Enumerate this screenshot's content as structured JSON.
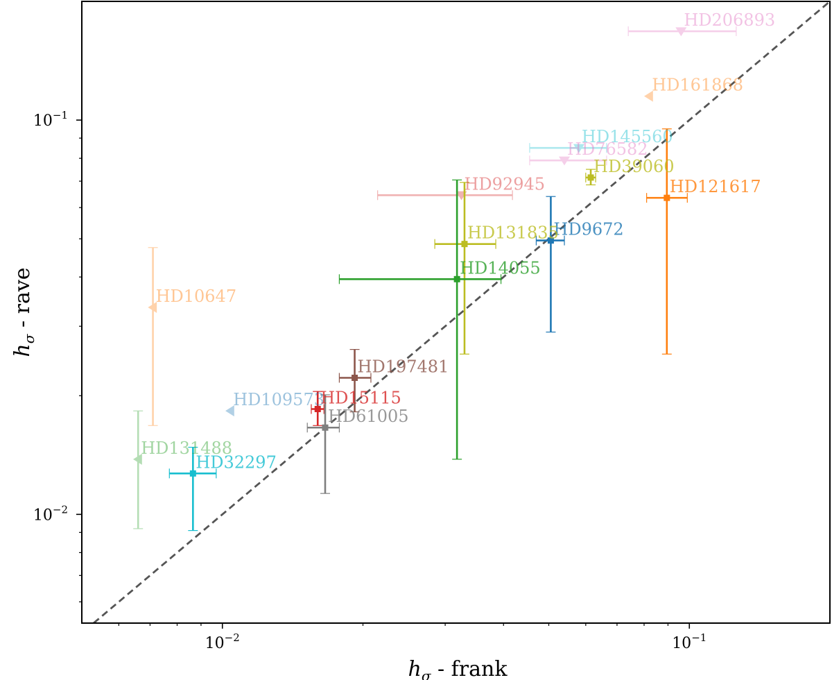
{
  "chart_data": {
    "type": "scatter",
    "title": "",
    "xlabel": "h_σ - frank",
    "ylabel": "h_σ - rave",
    "xlabel_main": "h",
    "xlabel_sub": "σ",
    "xlabel_rest": " - frank",
    "ylabel_main": "h",
    "ylabel_sub": "σ",
    "ylabel_rest": " - rave",
    "xscale": "log",
    "yscale": "log",
    "xlim": [
      0.005,
      0.2
    ],
    "ylim": [
      0.0053,
      0.2
    ],
    "x_ticks": [
      {
        "base": "10",
        "exp": "−2",
        "value": 0.01
      },
      {
        "base": "10",
        "exp": "−1",
        "value": 0.1
      }
    ],
    "y_ticks": [
      {
        "base": "10",
        "exp": "−2",
        "value": 0.01
      },
      {
        "base": "10",
        "exp": "−1",
        "value": 0.1
      }
    ],
    "reference_line": "y = x (dashed)",
    "points": [
      {
        "name": "HD206893",
        "x": 0.096,
        "y": 0.168,
        "xerr": [
          0.074,
          0.126
        ],
        "yerr": null,
        "color": "#e377c2",
        "marker": "v",
        "alpha": 0.35
      },
      {
        "name": "HD161868",
        "x": 0.082,
        "y": 0.115,
        "xerr": null,
        "yerr": null,
        "color": "#ff7f0e",
        "marker": "<",
        "alpha": 0.35
      },
      {
        "name": "HD145560",
        "x": 0.058,
        "y": 0.085,
        "xerr": [
          0.0455,
          0.0665
        ],
        "yerr": null,
        "color": "#17becf",
        "marker": "v",
        "alpha": 0.35
      },
      {
        "name": "HD76582",
        "x": 0.054,
        "y": 0.079,
        "xerr": [
          0.0455,
          0.0665
        ],
        "yerr": null,
        "color": "#e377c2",
        "marker": "v",
        "alpha": 0.35
      },
      {
        "name": "HD39060",
        "x": 0.0615,
        "y": 0.0715,
        "xerr": [
          0.06,
          0.063
        ],
        "yerr": [
          0.0685,
          0.075
        ],
        "color": "#bcbd22",
        "marker": "s",
        "alpha": 1.0
      },
      {
        "name": "HD121617",
        "x": 0.0895,
        "y": 0.0635,
        "xerr": [
          0.081,
          0.099
        ],
        "yerr": [
          0.0255,
          0.095
        ],
        "color": "#ff7f0e",
        "marker": "s",
        "alpha": 1.0
      },
      {
        "name": "HD92945",
        "x": 0.0325,
        "y": 0.0645,
        "xerr": [
          0.0215,
          0.0418
        ],
        "yerr": null,
        "color": "#d62728",
        "marker": "v",
        "alpha": 0.35
      },
      {
        "name": "HD9672",
        "x": 0.0505,
        "y": 0.0495,
        "xerr": [
          0.047,
          0.054
        ],
        "yerr": [
          0.029,
          0.064
        ],
        "color": "#1f77b4",
        "marker": "s",
        "alpha": 1.0
      },
      {
        "name": "HD131835",
        "x": 0.033,
        "y": 0.0485,
        "xerr": [
          0.0285,
          0.0385
        ],
        "yerr": [
          0.0255,
          0.0695
        ],
        "color": "#bcbd22",
        "marker": "s",
        "alpha": 1.0
      },
      {
        "name": "HD14055",
        "x": 0.0318,
        "y": 0.0395,
        "xerr": [
          0.0178,
          0.0395
        ],
        "yerr": [
          0.0138,
          0.0705
        ],
        "color": "#2ca02c",
        "marker": "s",
        "alpha": 1.0
      },
      {
        "name": "HD10647",
        "x": 0.0071,
        "y": 0.0335,
        "xerr": null,
        "yerr": [
          0.0168,
          0.0475
        ],
        "color": "#ff7f0e",
        "marker": "<",
        "alpha": 0.35
      },
      {
        "name": "HD197481",
        "x": 0.0192,
        "y": 0.0222,
        "xerr": [
          0.0178,
          0.0208
        ],
        "yerr": [
          0.0182,
          0.0262
        ],
        "color": "#8c564b",
        "marker": "s",
        "alpha": 1.0
      },
      {
        "name": "HD109573",
        "x": 0.0104,
        "y": 0.0183,
        "xerr": null,
        "yerr": null,
        "color": "#1f77b4",
        "marker": "<",
        "alpha": 0.35
      },
      {
        "name": "HD15115",
        "x": 0.016,
        "y": 0.0185,
        "xerr": [
          0.0155,
          0.0165
        ],
        "yerr": [
          0.0168,
          0.0205
        ],
        "color": "#d62728",
        "marker": "s",
        "alpha": 1.0
      },
      {
        "name": "HD61005",
        "x": 0.0166,
        "y": 0.0166,
        "xerr": [
          0.0152,
          0.0178
        ],
        "yerr": [
          0.0113,
          0.0201
        ],
        "color": "#7f7f7f",
        "marker": "s",
        "alpha": 1.0
      },
      {
        "name": "HD131488",
        "x": 0.0066,
        "y": 0.0138,
        "xerr": null,
        "yerr": [
          0.0092,
          0.0183
        ],
        "color": "#2ca02c",
        "marker": "<",
        "alpha": 0.35
      },
      {
        "name": "HD32297",
        "x": 0.00865,
        "y": 0.0127,
        "xerr": [
          0.0077,
          0.0097
        ],
        "yerr": [
          0.0091,
          0.0148
        ],
        "color": "#17becf",
        "marker": "s",
        "alpha": 1.0
      }
    ]
  }
}
